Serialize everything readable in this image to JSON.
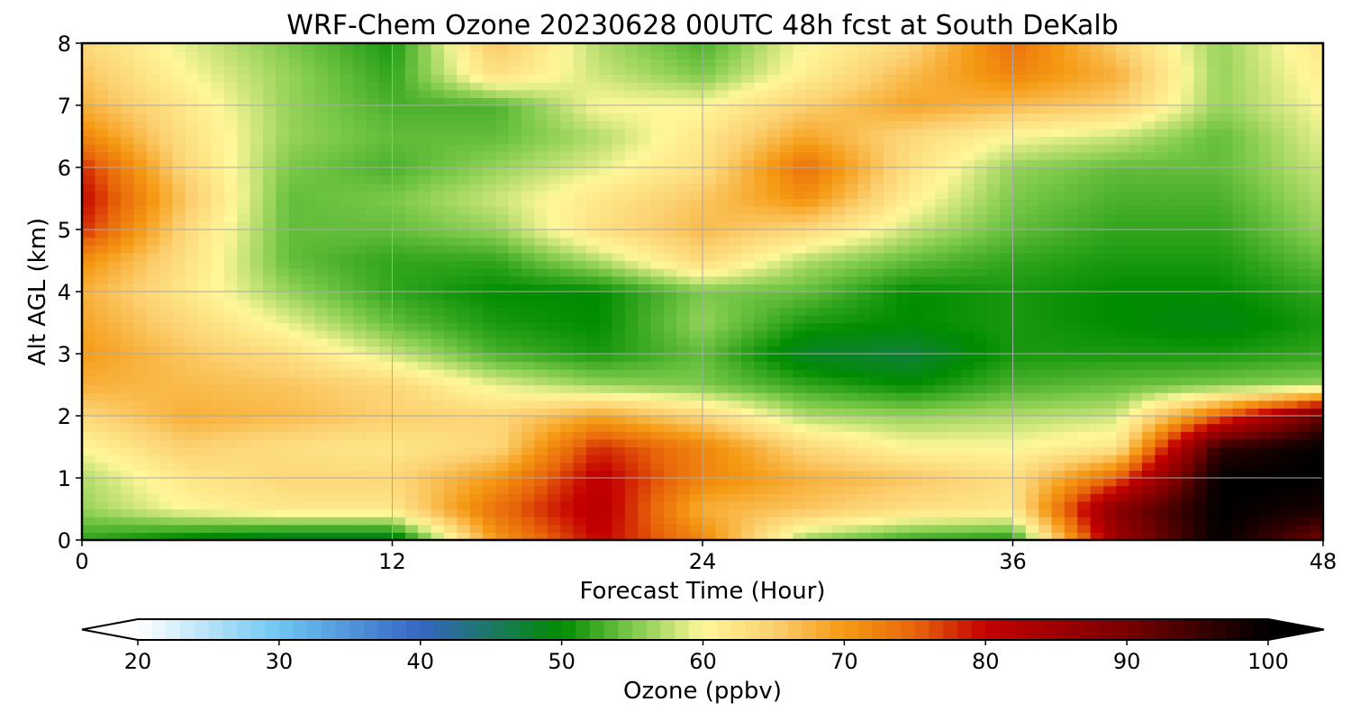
{
  "chart_data": {
    "type": "heatmap",
    "title": "WRF-Chem Ozone  20230628 00UTC 48h fcst at South DeKalb",
    "xlabel": "Forecast Time (Hour)",
    "ylabel": "Alt AGL (km)",
    "xlim": [
      0,
      48
    ],
    "ylim": [
      0,
      8
    ],
    "x_ticks": [
      0,
      12,
      24,
      36,
      48
    ],
    "y_ticks": [
      0,
      1,
      2,
      3,
      4,
      5,
      6,
      7,
      8
    ],
    "grid": true,
    "x": [
      0,
      4,
      8,
      12,
      16,
      20,
      24,
      28,
      32,
      36,
      40,
      44,
      48
    ],
    "y": [
      0,
      0.5,
      1,
      1.5,
      2,
      2.5,
      3,
      3.5,
      4,
      4.5,
      5,
      5.5,
      6,
      6.5,
      7,
      7.5,
      8
    ],
    "z": [
      [
        52,
        49,
        47,
        47,
        70,
        80,
        72,
        56,
        52,
        51,
        85,
        100,
        90
      ],
      [
        56,
        60,
        62,
        62,
        74,
        82,
        68,
        66,
        63,
        62,
        88,
        100,
        98
      ],
      [
        57,
        62,
        64,
        64,
        70,
        81,
        72,
        68,
        66,
        63,
        75,
        100,
        100
      ],
      [
        60,
        65,
        63,
        62,
        64,
        78,
        72,
        64,
        60,
        60,
        62,
        96,
        100
      ],
      [
        64,
        68,
        67,
        65,
        64,
        69,
        64,
        57,
        56,
        57,
        58,
        75,
        92
      ],
      [
        68,
        67,
        66,
        64,
        59,
        56,
        55,
        52,
        50,
        53,
        54,
        55,
        56
      ],
      [
        70,
        66,
        63,
        58,
        53,
        51,
        54,
        48,
        47,
        51,
        51,
        51,
        52
      ],
      [
        69,
        64,
        59,
        54,
        51,
        50,
        56,
        51,
        50,
        51,
        50,
        49,
        51
      ],
      [
        68,
        62,
        56,
        52,
        50,
        50,
        55,
        54,
        50,
        51,
        50,
        50,
        52
      ],
      [
        71,
        63,
        54,
        52,
        52,
        57,
        64,
        57,
        54,
        52,
        51,
        51,
        54
      ],
      [
        78,
        64,
        54,
        54,
        56,
        63,
        67,
        64,
        58,
        54,
        52,
        52,
        56
      ],
      [
        80,
        66,
        54,
        55,
        58,
        62,
        66,
        71,
        61,
        55,
        53,
        53,
        57
      ],
      [
        78,
        64,
        55,
        53,
        56,
        59,
        63,
        74,
        63,
        56,
        54,
        54,
        58
      ],
      [
        72,
        63,
        56,
        54,
        54,
        57,
        62,
        69,
        64,
        60,
        58,
        54,
        59
      ],
      [
        68,
        62,
        56,
        53,
        53,
        60,
        60,
        65,
        69,
        67,
        65,
        56,
        60
      ],
      [
        66,
        60,
        56,
        52,
        63,
        58,
        55,
        61,
        67,
        72,
        68,
        56,
        61
      ],
      [
        64,
        59,
        55,
        51,
        66,
        57,
        53,
        60,
        64,
        74,
        65,
        56,
        62
      ]
    ],
    "colorbar": {
      "label": "Ozone  (ppbv)",
      "min": 20,
      "max": 100,
      "ticks": [
        20,
        30,
        40,
        50,
        60,
        70,
        80,
        90,
        100
      ],
      "extend": "both"
    },
    "colormap_stops": [
      {
        "v": 20,
        "c": "#ffffff"
      },
      {
        "v": 30,
        "c": "#6ec6f2"
      },
      {
        "v": 40,
        "c": "#3565c4"
      },
      {
        "v": 50,
        "c": "#008c00"
      },
      {
        "v": 55,
        "c": "#7cc94a"
      },
      {
        "v": 60,
        "c": "#fff79a"
      },
      {
        "v": 65,
        "c": "#fcd070"
      },
      {
        "v": 70,
        "c": "#f59a14"
      },
      {
        "v": 75,
        "c": "#e8650a"
      },
      {
        "v": 80,
        "c": "#c40000"
      },
      {
        "v": 90,
        "c": "#780000"
      },
      {
        "v": 100,
        "c": "#000000"
      }
    ]
  }
}
